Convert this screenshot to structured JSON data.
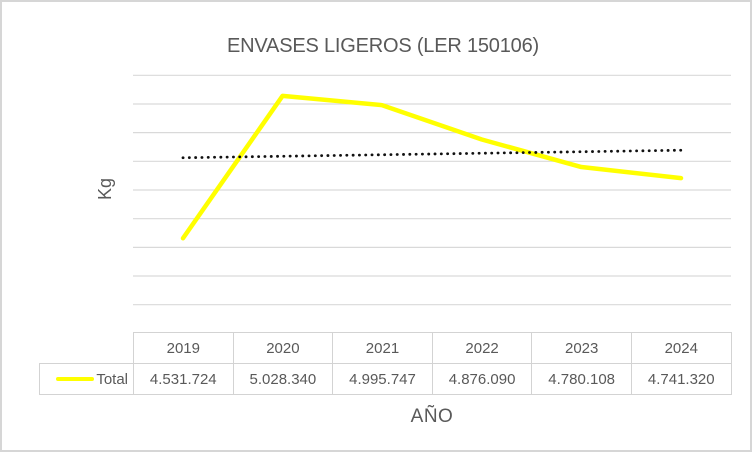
{
  "window": {
    "background": "#FFFFFF",
    "frame_border_color": "#D6D6D6"
  },
  "chart_data": {
    "type": "line",
    "title": "ENVASES LIGEROS (LER 150106)",
    "xlabel": "AÑO",
    "ylabel": "Kg",
    "categories": [
      "2019",
      "2020",
      "2021",
      "2022",
      "2023",
      "2024"
    ],
    "series": [
      {
        "name": "Total",
        "color": "#FFFF00",
        "values": [
          4531724,
          5028340,
          4995747,
          4876090,
          4780108,
          4741320
        ],
        "value_labels": [
          "4.531.724",
          "5.028.340",
          "4.995.747",
          "4.876.090",
          "4.780.108",
          "4.741.320"
        ]
      }
    ],
    "trendline": {
      "style": "dotted",
      "color": "#111111",
      "start_value": 4812439,
      "end_value": 4838671
    },
    "ylim": [
      4300000,
      5100000
    ],
    "y_major_unit": 100000,
    "grid": true,
    "gridline_color": "#D9D9D9",
    "axis_tick_labels_visible": false,
    "legend_position": "data-table-left",
    "data_table_shown": true,
    "text_color": "#595959",
    "table_border_color": "#D3D3D3"
  }
}
